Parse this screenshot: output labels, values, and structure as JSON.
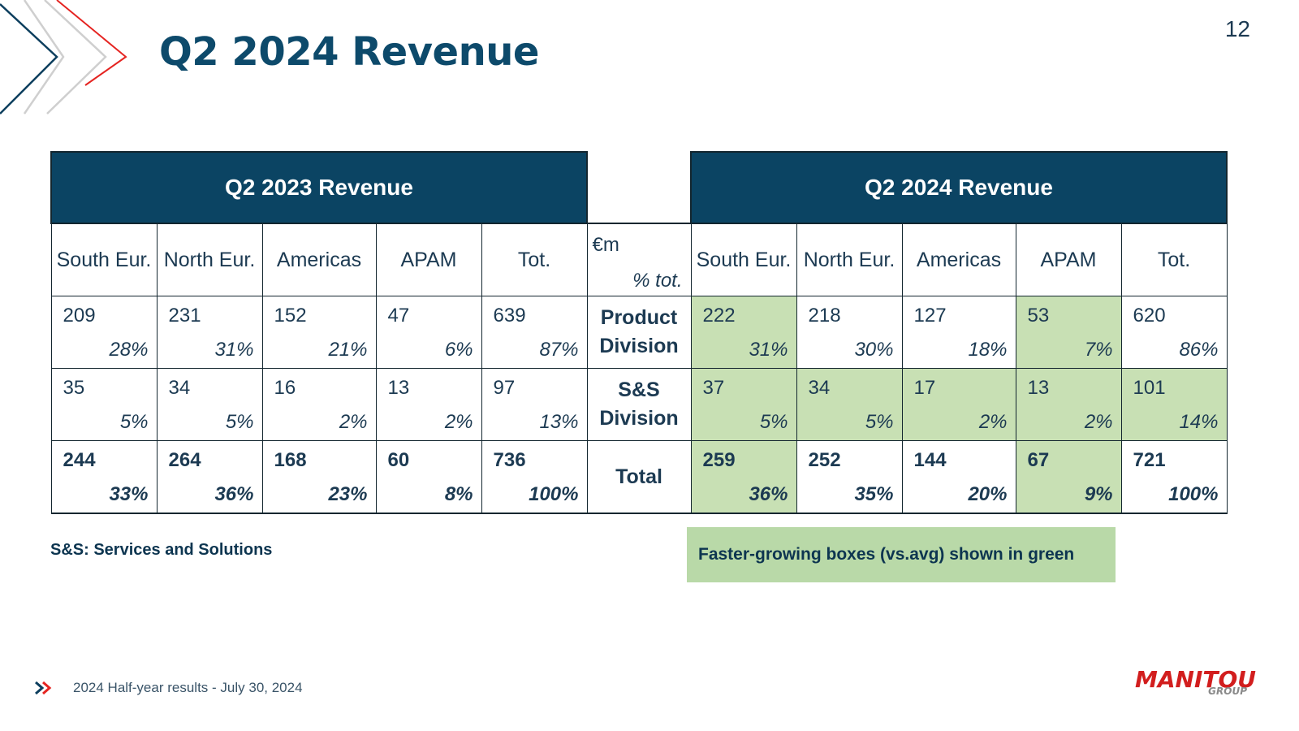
{
  "header": {
    "title": "Q2 2024 Revenue",
    "page_number": "12"
  },
  "table": {
    "left_header": "Q2 2023 Revenue",
    "right_header": "Q2 2024 Revenue",
    "columns": [
      "South Eur.",
      "North Eur.",
      "Americas",
      "APAM",
      "Tot."
    ],
    "unit": "€m",
    "unit_pct": "% tot.",
    "rows": [
      {
        "label_line1": "Product",
        "label_line2": "Division",
        "left": [
          {
            "v": "209",
            "p": "28%"
          },
          {
            "v": "231",
            "p": "31%"
          },
          {
            "v": "152",
            "p": "21%"
          },
          {
            "v": "47",
            "p": "6%"
          },
          {
            "v": "639",
            "p": "87%"
          }
        ],
        "right": [
          {
            "v": "222",
            "p": "31%"
          },
          {
            "v": "218",
            "p": "30%"
          },
          {
            "v": "127",
            "p": "18%"
          },
          {
            "v": "53",
            "p": "7%"
          },
          {
            "v": "620",
            "p": "86%"
          }
        ]
      },
      {
        "label_line1": "S&S",
        "label_line2": "Division",
        "left": [
          {
            "v": "35",
            "p": "5%"
          },
          {
            "v": "34",
            "p": "5%"
          },
          {
            "v": "16",
            "p": "2%"
          },
          {
            "v": "13",
            "p": "2%"
          },
          {
            "v": "97",
            "p": "13%"
          }
        ],
        "right": [
          {
            "v": "37",
            "p": "5%"
          },
          {
            "v": "34",
            "p": "5%"
          },
          {
            "v": "17",
            "p": "2%"
          },
          {
            "v": "13",
            "p": "2%"
          },
          {
            "v": "101",
            "p": "14%"
          }
        ]
      },
      {
        "label_line1": "Total",
        "label_line2": "",
        "left": [
          {
            "v": "244",
            "p": "33%"
          },
          {
            "v": "264",
            "p": "36%"
          },
          {
            "v": "168",
            "p": "23%"
          },
          {
            "v": "60",
            "p": "8%"
          },
          {
            "v": "736",
            "p": "100%"
          }
        ],
        "right": [
          {
            "v": "259",
            "p": "36%"
          },
          {
            "v": "252",
            "p": "35%"
          },
          {
            "v": "144",
            "p": "20%"
          },
          {
            "v": "67",
            "p": "9%"
          },
          {
            "v": "721",
            "p": "100%"
          }
        ]
      }
    ]
  },
  "notes": {
    "abbreviation": "S&S: Services and Solutions",
    "legend": "Faster-growing boxes (vs.avg) shown in green"
  },
  "footer": {
    "text": "2024 Half-year results - July 30, 2024"
  },
  "logo": {
    "main": "MANITOU",
    "sub": "GROUP"
  },
  "colors": {
    "header_bg": "#0b4463",
    "highlight": "#c8e0b4",
    "title": "#0d4a6b",
    "brand_red": "#d21e1e"
  }
}
